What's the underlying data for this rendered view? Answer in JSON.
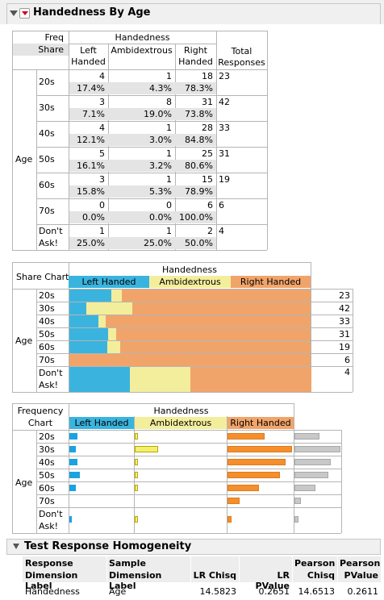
{
  "header": {
    "title": "Handedness By Age"
  },
  "colors": {
    "left": "#3ab4de",
    "ambi": "#f3ee9c",
    "right": "#f1a46a",
    "right_dark": "#f58f2e",
    "total": "#c8c8c8"
  },
  "table1": {
    "freq_label": "Freq",
    "share_label": "Share",
    "group_label": "Handedness",
    "columns": [
      "Left Handed",
      "Ambidextrous",
      "Right Handed",
      "Total Responses"
    ],
    "col_line1": [
      "Left",
      "Ambidextrous",
      "Right",
      "Total"
    ],
    "col_line2": [
      "Handed",
      "",
      "Handed",
      "Responses"
    ],
    "row_group": "Age",
    "rows": [
      {
        "label": "20s",
        "freq": [
          "4",
          "1",
          "18"
        ],
        "share": [
          "17.4%",
          "4.3%",
          "78.3%"
        ],
        "total": "23"
      },
      {
        "label": "30s",
        "freq": [
          "3",
          "8",
          "31"
        ],
        "share": [
          "7.1%",
          "19.0%",
          "73.8%"
        ],
        "total": "42"
      },
      {
        "label": "40s",
        "freq": [
          "4",
          "1",
          "28"
        ],
        "share": [
          "12.1%",
          "3.0%",
          "84.8%"
        ],
        "total": "33"
      },
      {
        "label": "50s",
        "freq": [
          "5",
          "1",
          "25"
        ],
        "share": [
          "16.1%",
          "3.2%",
          "80.6%"
        ],
        "total": "31"
      },
      {
        "label": "60s",
        "freq": [
          "3",
          "1",
          "15"
        ],
        "share": [
          "15.8%",
          "5.3%",
          "78.9%"
        ],
        "total": "19"
      },
      {
        "label": "70s",
        "freq": [
          "0",
          "0",
          "6"
        ],
        "share": [
          "0.0%",
          "0.0%",
          "100.0%"
        ],
        "total": "6"
      },
      {
        "label": "Don't Ask!",
        "label1": "Don't",
        "label2": "Ask!",
        "freq": [
          "1",
          "1",
          "2"
        ],
        "share": [
          "25.0%",
          "25.0%",
          "50.0%"
        ],
        "total": "4"
      }
    ]
  },
  "share_chart": {
    "corner": "Share Chart",
    "group_label": "Handedness",
    "legend": [
      "Left Handed",
      "Ambidextrous",
      "Right Handed"
    ],
    "row_group": "Age",
    "rows": [
      {
        "label": "20s",
        "shares": [
          17.4,
          4.3,
          78.3
        ],
        "total": "23"
      },
      {
        "label": "30s",
        "shares": [
          7.1,
          19.0,
          73.8
        ],
        "total": "42"
      },
      {
        "label": "40s",
        "shares": [
          12.1,
          3.0,
          84.8
        ],
        "total": "33"
      },
      {
        "label": "50s",
        "shares": [
          16.1,
          3.2,
          80.6
        ],
        "total": "31"
      },
      {
        "label": "60s",
        "shares": [
          15.8,
          5.3,
          78.9
        ],
        "total": "19"
      },
      {
        "label": "70s",
        "shares": [
          0.0,
          0.0,
          100.0
        ],
        "total": "6"
      },
      {
        "label1": "Don't",
        "label2": "Ask!",
        "shares": [
          25.0,
          25.0,
          50.0
        ],
        "total": "4"
      }
    ]
  },
  "freq_chart": {
    "corner1": "Frequency",
    "corner2": "Chart",
    "group_label": "Handedness",
    "legend": [
      "Left Handed",
      "Ambidextrous",
      "Right Handed"
    ],
    "row_group": "Age",
    "rows": [
      {
        "label": "20s",
        "freq": [
          4,
          1,
          18
        ],
        "total": 23
      },
      {
        "label": "30s",
        "freq": [
          3,
          8,
          31
        ],
        "total": 42
      },
      {
        "label": "40s",
        "freq": [
          4,
          1,
          28
        ],
        "total": 33
      },
      {
        "label": "50s",
        "freq": [
          5,
          1,
          25
        ],
        "total": 31
      },
      {
        "label": "60s",
        "freq": [
          3,
          1,
          15
        ],
        "total": 19
      },
      {
        "label": "70s",
        "freq": [
          0,
          0,
          6
        ],
        "total": 6
      },
      {
        "label1": "Don't",
        "label2": "Ask!",
        "freq": [
          1,
          1,
          2
        ],
        "total": 4
      }
    ]
  },
  "test": {
    "title": "Test Response Homogeneity",
    "headers": [
      [
        "Response",
        "Dimension Label"
      ],
      [
        "Sample",
        "Dimension Label"
      ],
      [
        "",
        "LR Chisq"
      ],
      [
        "",
        "LR PValue"
      ],
      [
        "Pearson",
        "Chisq"
      ],
      [
        "Pearson",
        "PValue"
      ]
    ],
    "row": [
      "Handedness",
      "Age",
      "14.5823",
      "0.2651",
      "14.6513",
      "0.2611"
    ]
  }
}
